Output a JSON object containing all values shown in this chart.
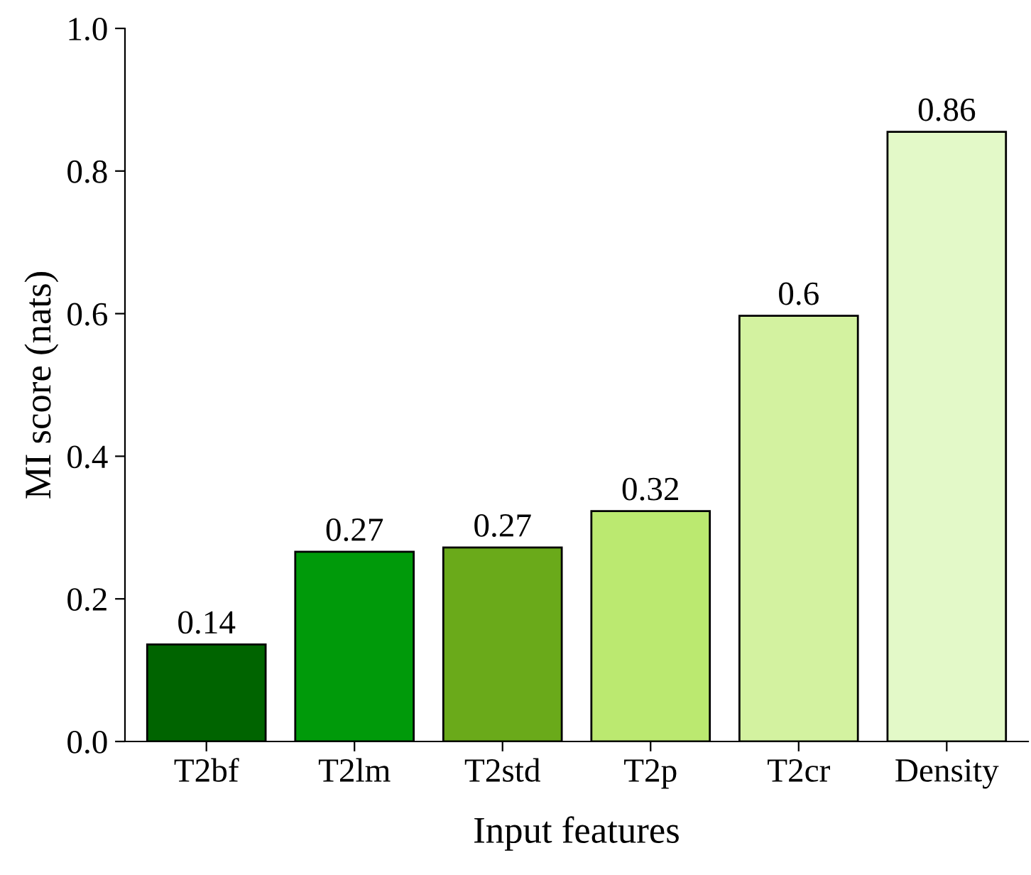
{
  "chart_data": {
    "type": "bar",
    "xlabel": "Input features",
    "ylabel": "MI score (nats)",
    "categories": [
      "T2bf",
      "T2lm",
      "T2std",
      "T2p",
      "T2cr",
      "Density"
    ],
    "values": [
      0.136,
      0.266,
      0.272,
      0.323,
      0.597,
      0.855
    ],
    "value_labels": [
      "0.14",
      "0.27",
      "0.27",
      "0.32",
      "0.6",
      "0.86"
    ],
    "colors": [
      "#006400",
      "#009a0a",
      "#6aaa1a",
      "#bbe970",
      "#d3f2a0",
      "#e3f9c8"
    ],
    "ylim": [
      0,
      1.0
    ],
    "yticks": [
      {
        "value": 0,
        "label": "0.0"
      },
      0.2,
      0.4,
      0.6,
      0.8,
      {
        "value": 1.0,
        "label": "1.0"
      }
    ],
    "grid": false,
    "legend": false
  }
}
